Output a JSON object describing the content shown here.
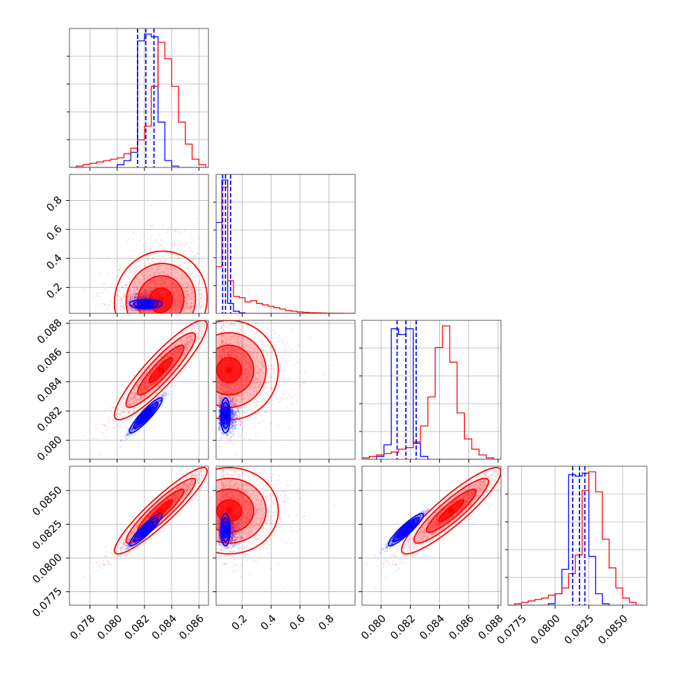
{
  "chart_data": {
    "type": "corner",
    "title": "",
    "grid": true,
    "series": [
      {
        "color": "#0000ff"
      },
      {
        "color": "#ff0000"
      }
    ],
    "parameters": [
      {
        "index": 0,
        "range": [
          0.0765,
          0.0867
        ],
        "ticks": [
          0.078,
          0.08,
          0.082,
          0.084,
          0.086
        ],
        "tick_labels": [
          "0.078",
          "0.080",
          "0.082",
          "0.084",
          "0.086"
        ]
      },
      {
        "index": 1,
        "range": [
          0.02,
          0.98
        ],
        "ticks": [
          0.2,
          0.4,
          0.6,
          0.8
        ],
        "tick_labels": [
          "0.2",
          "0.4",
          "0.6",
          "0.8"
        ]
      },
      {
        "index": 2,
        "range": [
          0.0787,
          0.0882
        ],
        "ticks": [
          0.08,
          0.082,
          0.084,
          0.086,
          0.088
        ],
        "tick_labels": [
          "0.080",
          "0.082",
          "0.084",
          "0.086",
          "0.088"
        ]
      },
      {
        "index": 3,
        "range": [
          0.0765,
          0.0868
        ],
        "ticks": [
          0.0775,
          0.08,
          0.0825,
          0.085
        ],
        "tick_labels": [
          "0.0775",
          "0.0800",
          "0.0825",
          "0.0850"
        ]
      }
    ],
    "quantile_lines": [
      {
        "param": 0,
        "color": "#0000ff",
        "values": [
          0.0815,
          0.0821,
          0.0827
        ]
      },
      {
        "param": 1,
        "color": "#0000ff",
        "values": [
          0.065,
          0.085,
          0.12
        ]
      },
      {
        "param": 2,
        "color": "#0000ff",
        "values": [
          0.0811,
          0.0817,
          0.0824
        ]
      },
      {
        "param": 3,
        "color": "#0000ff",
        "values": [
          0.0813,
          0.0818,
          0.0822
        ]
      }
    ],
    "histograms": [
      {
        "param": 0,
        "series": 0,
        "edges": [
          0.0765,
          0.077,
          0.0775,
          0.078,
          0.0785,
          0.079,
          0.0795,
          0.08,
          0.0805,
          0.081,
          0.0815,
          0.082,
          0.0825,
          0.083,
          0.0835,
          0.084,
          0.0845,
          0.085,
          0.0855,
          0.086,
          0.0865
        ],
        "counts": [
          0,
          0,
          0,
          0,
          0,
          0,
          0,
          0.02,
          0.05,
          0.11,
          0.92,
          0.97,
          0.95,
          0.33,
          0.05,
          0.01,
          0,
          0,
          0,
          0
        ]
      },
      {
        "param": 0,
        "series": 1,
        "edges": [
          0.0765,
          0.077,
          0.0775,
          0.078,
          0.0785,
          0.079,
          0.0795,
          0.08,
          0.0805,
          0.081,
          0.0815,
          0.082,
          0.0825,
          0.083,
          0.0835,
          0.084,
          0.0845,
          0.085,
          0.0855,
          0.086,
          0.0865
        ],
        "counts": [
          0,
          0.01,
          0.02,
          0.03,
          0.04,
          0.05,
          0.06,
          0.07,
          0.1,
          0.14,
          0.2,
          0.3,
          0.59,
          0.91,
          0.79,
          0.59,
          0.33,
          0.17,
          0.06,
          0.02
        ]
      },
      {
        "param": 1,
        "series": 0,
        "edges": [
          0.02,
          0.06,
          0.1,
          0.14,
          0.18,
          0.22,
          0.26,
          0.3,
          0.34,
          0.38,
          0.42,
          0.46,
          0.5,
          0.54,
          0.58,
          0.62,
          0.66,
          0.7,
          0.74,
          0.78,
          0.82,
          0.86,
          0.9,
          0.94,
          0.98
        ],
        "counts": [
          0.64,
          0.94,
          0.07,
          0.015,
          0.004,
          0,
          0,
          0,
          0,
          0,
          0,
          0,
          0,
          0,
          0,
          0,
          0,
          0,
          0,
          0,
          0,
          0,
          0,
          0
        ]
      },
      {
        "param": 1,
        "series": 1,
        "edges": [
          0.02,
          0.06,
          0.1,
          0.14,
          0.18,
          0.22,
          0.26,
          0.3,
          0.34,
          0.38,
          0.42,
          0.46,
          0.5,
          0.54,
          0.58,
          0.62,
          0.66,
          0.7,
          0.74,
          0.78,
          0.82,
          0.86,
          0.9,
          0.94,
          0.98
        ],
        "counts": [
          0.33,
          0.89,
          0.23,
          0.12,
          0.11,
          0.08,
          0.09,
          0.07,
          0.06,
          0.05,
          0.04,
          0.03,
          0.02,
          0.015,
          0.01,
          0.007,
          0.005,
          0.004,
          0.003,
          0.002,
          0.001,
          0.001,
          0,
          0
        ]
      },
      {
        "param": 2,
        "series": 0,
        "edges": [
          0.0787,
          0.0792,
          0.0797,
          0.0802,
          0.0807,
          0.0812,
          0.0817,
          0.0822,
          0.0827,
          0.0832,
          0.0837,
          0.0842,
          0.0847,
          0.0852,
          0.0857,
          0.0862,
          0.0867,
          0.0872,
          0.0877,
          0.0882
        ],
        "counts": [
          0,
          0,
          0.02,
          0.1,
          0.9,
          0.86,
          0.9,
          0.11,
          0.02,
          0,
          0,
          0,
          0,
          0,
          0,
          0,
          0,
          0,
          0
        ]
      },
      {
        "param": 2,
        "series": 1,
        "edges": [
          0.0787,
          0.0792,
          0.0797,
          0.0802,
          0.0807,
          0.0812,
          0.0817,
          0.0822,
          0.0827,
          0.0832,
          0.0837,
          0.0842,
          0.0847,
          0.0852,
          0.0857,
          0.0862,
          0.0867,
          0.0872,
          0.0877,
          0.0882
        ],
        "counts": [
          0.01,
          0.02,
          0.03,
          0.04,
          0.05,
          0.07,
          0.08,
          0.12,
          0.23,
          0.43,
          0.77,
          0.92,
          0.67,
          0.32,
          0.14,
          0.07,
          0.03,
          0.01,
          0
        ]
      },
      {
        "param": 3,
        "series": 0,
        "edges": [
          0.0765,
          0.077,
          0.0775,
          0.078,
          0.0785,
          0.079,
          0.0795,
          0.08,
          0.0805,
          0.081,
          0.0815,
          0.082,
          0.0825,
          0.083,
          0.0835,
          0.084,
          0.0845,
          0.085,
          0.0855,
          0.086,
          0.0865
        ],
        "counts": [
          0,
          0,
          0,
          0,
          0,
          0,
          0.01,
          0.08,
          0.25,
          0.91,
          0.9,
          0.92,
          0.34,
          0.08,
          0.01,
          0,
          0,
          0,
          0,
          0
        ]
      },
      {
        "param": 3,
        "series": 1,
        "edges": [
          0.0765,
          0.077,
          0.0775,
          0.078,
          0.0785,
          0.079,
          0.0795,
          0.08,
          0.0805,
          0.081,
          0.0815,
          0.082,
          0.0825,
          0.083,
          0.0835,
          0.084,
          0.0845,
          0.085,
          0.0855,
          0.086,
          0.0865
        ],
        "counts": [
          0,
          0.01,
          0.02,
          0.03,
          0.04,
          0.05,
          0.07,
          0.08,
          0.12,
          0.22,
          0.35,
          0.8,
          0.93,
          0.79,
          0.46,
          0.26,
          0.12,
          0.05,
          0.02,
          0
        ]
      }
    ],
    "scatter_clouds": [
      {
        "series": 1,
        "mean": [
          0.0832,
          0.22,
          0.0848,
          0.0835
        ],
        "sd": [
          0.0017,
          0.17,
          0.0017,
          0.0016
        ],
        "corr": [
          [
            1,
            0.05,
            0.95,
            0.97
          ],
          [
            0.05,
            1,
            0,
            0
          ],
          [
            0.95,
            0,
            1,
            0.95
          ],
          [
            0.97,
            0,
            0.95,
            1
          ]
        ]
      },
      {
        "series": 0,
        "mean": [
          0.0821,
          0.085,
          0.0817,
          0.0821
        ],
        "sd": [
          0.0006,
          0.04,
          0.0006,
          0.0006
        ],
        "corr": [
          [
            1,
            0,
            0.96,
            0.96
          ],
          [
            0,
            1,
            0,
            0
          ],
          [
            0.96,
            0,
            1,
            0.96
          ],
          [
            0.96,
            0,
            0.96,
            1
          ]
        ]
      }
    ],
    "contour_levels_sigma": [
      0.5,
      1.0,
      1.5,
      2.0
    ]
  }
}
